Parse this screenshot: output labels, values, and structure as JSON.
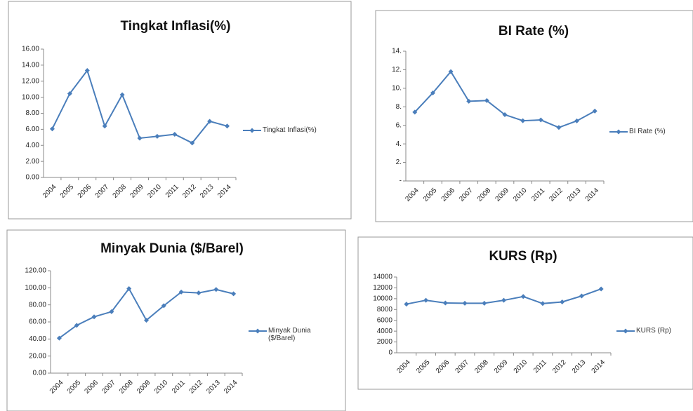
{
  "chart_data": [
    {
      "type": "line",
      "title": "Tingkat Inflasi(%)",
      "categories": [
        "2004",
        "2005",
        "2006",
        "2007",
        "2008",
        "2009",
        "2010",
        "2011",
        "2012",
        "2013",
        "2014"
      ],
      "series": [
        {
          "name": "Tingkat Inflasi(%)",
          "color": "#4a7ebb",
          "values": [
            6.06,
            10.45,
            13.33,
            6.4,
            10.31,
            4.9,
            5.13,
            5.38,
            4.3,
            7.0,
            6.4
          ]
        }
      ],
      "ylim": [
        0,
        16
      ],
      "yticks": [
        {
          "value": 0,
          "label": "0.00"
        },
        {
          "value": 2,
          "label": "2.00"
        },
        {
          "value": 4,
          "label": "4.00"
        },
        {
          "value": 6,
          "label": "6.00"
        },
        {
          "value": 8,
          "label": "8.00"
        },
        {
          "value": 10,
          "label": "10.00"
        },
        {
          "value": 12,
          "label": "12.00"
        },
        {
          "value": 14,
          "label": "14.00"
        },
        {
          "value": 16,
          "label": "16.00"
        }
      ],
      "grid": false
    },
    {
      "type": "line",
      "title": "BI Rate  (%)",
      "categories": [
        "2004",
        "2005",
        "2006",
        "2007",
        "2008",
        "2009",
        "2010",
        "2011",
        "2012",
        "2013",
        "2014"
      ],
      "series": [
        {
          "name": "BI Rate  (%)",
          "color": "#4a7ebb",
          "values": [
            7.43,
            9.5,
            11.8,
            8.6,
            8.67,
            7.15,
            6.5,
            6.58,
            5.77,
            6.48,
            7.54
          ]
        }
      ],
      "ylim": [
        0,
        14
      ],
      "yticks": [
        {
          "value": 0,
          "label": "-"
        },
        {
          "value": 2,
          "label": "2."
        },
        {
          "value": 4,
          "label": "4."
        },
        {
          "value": 6,
          "label": "6."
        },
        {
          "value": 8,
          "label": "8."
        },
        {
          "value": 10,
          "label": "10."
        },
        {
          "value": 12,
          "label": "12."
        },
        {
          "value": 14,
          "label": "14."
        }
      ],
      "grid": false
    },
    {
      "type": "line",
      "title": "Minyak Dunia ($/Barel)",
      "categories": [
        "2004",
        "2005",
        "2006",
        "2007",
        "2008",
        "2009",
        "2010",
        "2011",
        "2012",
        "2013",
        "2014"
      ],
      "series": [
        {
          "name": "Minyak Dunia ($/Barel)",
          "color": "#4a7ebb",
          "values": [
            41,
            56,
            66,
            72,
            99,
            62,
            79,
            95,
            94,
            98,
            93
          ]
        }
      ],
      "ylim": [
        0,
        120
      ],
      "yticks": [
        {
          "value": 0,
          "label": "0.00"
        },
        {
          "value": 20,
          "label": "20.00"
        },
        {
          "value": 40,
          "label": "40.00"
        },
        {
          "value": 60,
          "label": "60.00"
        },
        {
          "value": 80,
          "label": "80.00"
        },
        {
          "value": 100,
          "label": "100.00"
        },
        {
          "value": 120,
          "label": "120.00"
        }
      ],
      "grid": false
    },
    {
      "type": "line",
      "title": "KURS (Rp)",
      "categories": [
        "2004",
        "2005",
        "2006",
        "2007",
        "2008",
        "2009",
        "2010",
        "2011",
        "2012",
        "2013",
        "2014"
      ],
      "series": [
        {
          "name": "KURS (Rp)",
          "color": "#4a7ebb",
          "values": [
            9000,
            9700,
            9200,
            9150,
            9150,
            9700,
            10400,
            9100,
            9400,
            10500,
            11800
          ]
        }
      ],
      "ylim": [
        0,
        14000
      ],
      "yticks": [
        0,
        2000,
        4000,
        6000,
        8000,
        10000,
        12000,
        14000
      ],
      "grid": false
    }
  ]
}
